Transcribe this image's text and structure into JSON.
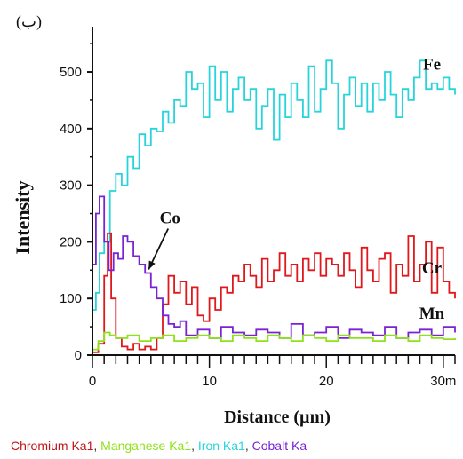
{
  "chart_data": {
    "type": "line",
    "panel_label": "(ب)",
    "xlabel": "Distance (µm)",
    "ylabel": "Intensity",
    "xlim": [
      0,
      31
    ],
    "ylim": [
      0,
      580
    ],
    "x_ticks": [
      {
        "value": 0,
        "label": "0"
      },
      {
        "value": 10,
        "label": "10"
      },
      {
        "value": 20,
        "label": "20"
      },
      {
        "value": 30,
        "label": "30m"
      }
    ],
    "y_ticks": [
      {
        "value": 0,
        "label": "0"
      },
      {
        "value": 100,
        "label": "100"
      },
      {
        "value": 200,
        "label": "200"
      },
      {
        "value": 300,
        "label": "300"
      },
      {
        "value": 400,
        "label": "400"
      },
      {
        "value": 500,
        "label": "500"
      }
    ],
    "grid": false,
    "legend_position": "bottom",
    "series": [
      {
        "name": "Iron Ka1",
        "label": "Fe",
        "color": "#28d4dc",
        "x": [
          0,
          0.3,
          0.6,
          1,
          1.5,
          2,
          2.5,
          3,
          3.5,
          4,
          4.5,
          5,
          5.5,
          6,
          6.5,
          7,
          7.5,
          8,
          8.5,
          9,
          9.5,
          10,
          10.5,
          11,
          11.5,
          12,
          12.5,
          13,
          13.5,
          14,
          14.5,
          15,
          15.5,
          16,
          16.5,
          17,
          17.5,
          18,
          18.5,
          19,
          19.5,
          20,
          20.5,
          21,
          21.5,
          22,
          22.5,
          23,
          23.5,
          24,
          24.5,
          25,
          25.5,
          26,
          26.5,
          27,
          27.5,
          28,
          28.5,
          29,
          29.5,
          30,
          30.5,
          31
        ],
        "values": [
          80,
          110,
          180,
          200,
          290,
          320,
          300,
          350,
          330,
          390,
          370,
          400,
          395,
          430,
          410,
          450,
          440,
          500,
          470,
          480,
          420,
          510,
          450,
          500,
          430,
          470,
          490,
          450,
          470,
          400,
          440,
          470,
          380,
          460,
          420,
          480,
          450,
          420,
          510,
          430,
          470,
          520,
          480,
          400,
          460,
          490,
          440,
          480,
          430,
          480,
          450,
          500,
          460,
          420,
          470,
          450,
          490,
          520,
          470,
          480,
          470,
          490,
          470,
          460
        ]
      },
      {
        "name": "Chromium Ka1",
        "label": "Cr",
        "color": "#e0181c",
        "x": [
          0,
          0.5,
          1,
          1.3,
          1.6,
          2,
          2.5,
          3,
          3.5,
          4,
          4.5,
          5,
          5.5,
          6,
          6.5,
          7,
          7.5,
          8,
          8.5,
          9,
          9.5,
          10,
          10.5,
          11,
          11.5,
          12,
          12.5,
          13,
          13.5,
          14,
          14.5,
          15,
          15.5,
          16,
          16.5,
          17,
          17.5,
          18,
          18.5,
          19,
          19.5,
          20,
          20.5,
          21,
          21.5,
          22,
          22.5,
          23,
          23.5,
          24,
          24.5,
          25,
          25.5,
          26,
          26.5,
          27,
          27.5,
          28,
          28.5,
          29,
          29.5,
          30,
          30.5,
          31
        ],
        "values": [
          5,
          20,
          140,
          215,
          100,
          30,
          15,
          10,
          20,
          10,
          15,
          10,
          30,
          90,
          140,
          110,
          130,
          90,
          120,
          70,
          60,
          100,
          80,
          120,
          110,
          140,
          130,
          160,
          140,
          120,
          170,
          130,
          150,
          180,
          140,
          160,
          130,
          170,
          150,
          180,
          140,
          170,
          160,
          140,
          180,
          150,
          120,
          190,
          150,
          130,
          170,
          180,
          110,
          160,
          140,
          210,
          130,
          160,
          200,
          110,
          190,
          130,
          110,
          100
        ]
      },
      {
        "name": "Cobalt Ka",
        "label": "Co",
        "color": "#7a22d4",
        "x": [
          0,
          0.3,
          0.6,
          1,
          1.4,
          1.8,
          2.2,
          2.6,
          3,
          3.5,
          4,
          4.5,
          5,
          5.5,
          6,
          6.5,
          7,
          7.5,
          8,
          9,
          10,
          11,
          12,
          13,
          14,
          15,
          16,
          17,
          18,
          19,
          20,
          21,
          22,
          23,
          24,
          25,
          26,
          27,
          28,
          29,
          30,
          31
        ],
        "values": [
          160,
          250,
          280,
          200,
          150,
          180,
          170,
          210,
          200,
          175,
          160,
          145,
          120,
          100,
          70,
          55,
          50,
          60,
          35,
          45,
          30,
          50,
          40,
          35,
          45,
          40,
          30,
          55,
          35,
          40,
          50,
          30,
          45,
          40,
          35,
          50,
          30,
          40,
          45,
          35,
          50,
          40
        ]
      },
      {
        "name": "Manganese Ka1",
        "label": "Mn",
        "color": "#8ee21c",
        "x": [
          0,
          0.5,
          1,
          1.5,
          2,
          3,
          4,
          5,
          6,
          7,
          8,
          9,
          10,
          11,
          12,
          13,
          14,
          15,
          16,
          17,
          18,
          19,
          20,
          21,
          22,
          23,
          24,
          25,
          26,
          27,
          28,
          29,
          30,
          31
        ],
        "values": [
          10,
          25,
          40,
          35,
          30,
          35,
          25,
          30,
          35,
          25,
          30,
          35,
          30,
          25,
          35,
          30,
          25,
          35,
          30,
          25,
          35,
          30,
          25,
          35,
          30,
          30,
          25,
          35,
          30,
          25,
          35,
          30,
          28,
          30
        ]
      }
    ],
    "annotations": [
      {
        "text": "Co",
        "target_series": "Cobalt Ka",
        "arrow": true
      }
    ],
    "legend": [
      {
        "text": "Chromium Ka1",
        "color": "#c0141a"
      },
      {
        "text": ", ",
        "color": "#333333"
      },
      {
        "text": "Manganese Ka1",
        "color": "#8ee21c"
      },
      {
        "text": ", ",
        "color": "#333333"
      },
      {
        "text": "Iron Ka1",
        "color": "#28d4dc"
      },
      {
        "text": ", ",
        "color": "#333333"
      },
      {
        "text": "Cobalt Ka",
        "color": "#7a22d4"
      }
    ]
  }
}
